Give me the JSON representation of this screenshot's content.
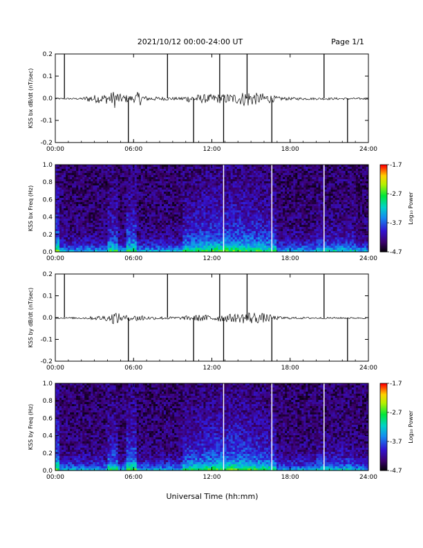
{
  "header": {
    "title": "2021/10/12  00:00-24:00 UT",
    "page": "Page 1/1"
  },
  "footer": {
    "xlabel": "Universal Time (hh:mm)"
  },
  "colorbar": {
    "label": "Log₁₀ Power",
    "ticks": [
      "-1.7",
      "-2.7",
      "-3.7",
      "-4.7"
    ]
  },
  "chart_data": [
    {
      "type": "line",
      "ylabel": "KSS bx dB/dt (nT/sec)",
      "ylim": [
        -0.2,
        0.2
      ],
      "yticks": [
        "0.2",
        "0.1",
        "0.0",
        "-0.1",
        "-0.2"
      ],
      "xticks": [
        "00:00",
        "06:00",
        "12:00",
        "18:00",
        "24:00"
      ],
      "xlim_hours": [
        0,
        24
      ],
      "series": [
        {
          "x_hours": [
            0,
            2.0,
            2.5,
            4.2,
            4.6,
            5.0,
            6.0,
            6.4,
            7.0,
            9.5,
            10.0,
            11.0,
            12.0,
            13.0,
            14.0,
            14.8,
            15.5,
            16.2,
            17.0,
            18.0,
            20.0,
            21.0,
            24.0
          ],
          "envelope": [
            0.003,
            0.004,
            0.015,
            0.025,
            0.045,
            0.02,
            0.015,
            0.035,
            0.01,
            0.006,
            0.015,
            0.02,
            0.02,
            0.022,
            0.025,
            0.04,
            0.025,
            0.025,
            0.01,
            0.006,
            0.005,
            0.005,
            0.004
          ]
        }
      ],
      "spikes_hours": [
        0.7,
        5.6,
        8.6,
        10.6,
        12.6,
        12.9,
        14.7,
        16.6,
        20.6,
        22.4
      ]
    },
    {
      "type": "heatmap",
      "ylabel": "KSS bx Freq (Hz)",
      "ylim": [
        0.0,
        1.0
      ],
      "yticks": [
        "1.0",
        "0.8",
        "0.6",
        "0.4",
        "0.2",
        "0.0"
      ],
      "xticks": [
        "00:00",
        "06:00",
        "12:00",
        "18:00",
        "24:00"
      ],
      "xlim_hours": [
        0,
        24
      ],
      "zlim": [
        -4.7,
        -1.7
      ],
      "gap_hours": [
        12.9,
        16.6,
        20.6
      ]
    },
    {
      "type": "line",
      "ylabel": "KSS by dB/dt (nT/sec)",
      "ylim": [
        -0.2,
        0.2
      ],
      "yticks": [
        "0.2",
        "0.1",
        "0.0",
        "-0.1",
        "-0.2"
      ],
      "xticks": [
        "00:00",
        "06:00",
        "12:00",
        "18:00",
        "24:00"
      ],
      "xlim_hours": [
        0,
        24
      ],
      "series": [
        {
          "x_hours": [
            0,
            2.0,
            2.5,
            4.2,
            4.6,
            5.0,
            6.0,
            6.4,
            7.0,
            9.5,
            10.0,
            11.0,
            12.0,
            13.0,
            14.0,
            14.8,
            15.5,
            16.2,
            17.0,
            18.0,
            20.0,
            21.0,
            24.0
          ],
          "envelope": [
            0.003,
            0.004,
            0.006,
            0.015,
            0.035,
            0.015,
            0.01,
            0.02,
            0.008,
            0.006,
            0.01,
            0.015,
            0.015,
            0.018,
            0.02,
            0.03,
            0.025,
            0.02,
            0.008,
            0.005,
            0.004,
            0.004,
            0.003
          ]
        }
      ],
      "spikes_hours": [
        0.7,
        5.6,
        8.6,
        10.6,
        12.6,
        12.9,
        14.7,
        16.6,
        20.6,
        22.4
      ]
    },
    {
      "type": "heatmap",
      "ylabel": "KSS by Freq (Hz)",
      "ylim": [
        0.0,
        1.0
      ],
      "yticks": [
        "1.0",
        "0.8",
        "0.6",
        "0.4",
        "0.2",
        "0.0"
      ],
      "xticks": [
        "00:00",
        "06:00",
        "12:00",
        "18:00",
        "24:00"
      ],
      "xlim_hours": [
        0,
        24
      ],
      "zlim": [
        -4.7,
        -1.7
      ],
      "gap_hours": [
        12.9,
        16.6,
        20.6
      ]
    }
  ]
}
